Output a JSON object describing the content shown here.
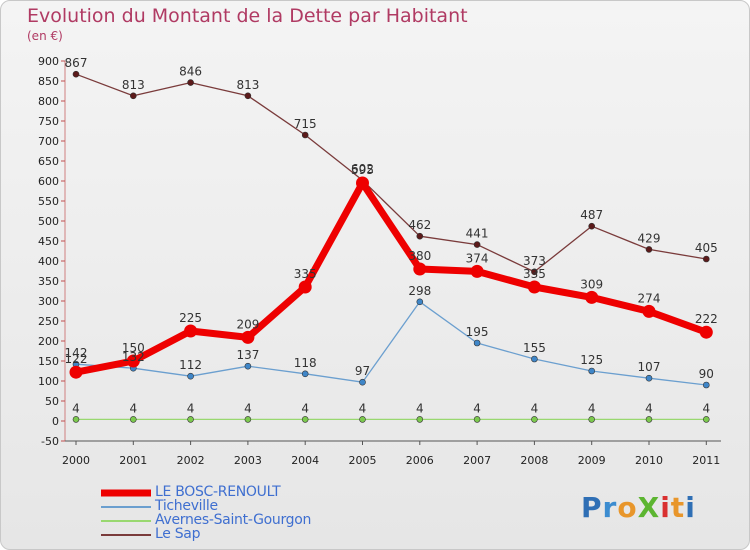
{
  "chart_data": {
    "type": "line",
    "title": "Evolution du Montant de la Dette par Habitant",
    "subtitle": "(en €)",
    "xlabel": "",
    "ylabel": "",
    "ylim": [
      -50,
      900
    ],
    "y_ticks": [
      900,
      850,
      800,
      750,
      700,
      650,
      600,
      550,
      500,
      450,
      400,
      350,
      300,
      250,
      200,
      150,
      100,
      50,
      0,
      -50
    ],
    "x": [
      "2000",
      "2001",
      "2002",
      "2003",
      "2004",
      "2005",
      "2006",
      "2007",
      "2008",
      "2009",
      "2010",
      "2011"
    ],
    "grid": false,
    "series": [
      {
        "name": "LE BOSC-RENOULT",
        "values": [
          122,
          150,
          225,
          209,
          335,
          595,
          380,
          374,
          335,
          309,
          274,
          222
        ],
        "color": "#ee0000",
        "marker": "#ee0000"
      },
      {
        "name": "Ticheville",
        "values": [
          142,
          132,
          112,
          137,
          118,
          97,
          298,
          195,
          155,
          125,
          107,
          90
        ],
        "color": "#6b9fcf",
        "marker": "#3f86c8"
      },
      {
        "name": "Avernes-Saint-Gourgon",
        "values": [
          4,
          4,
          4,
          4,
          4,
          4,
          4,
          4,
          4,
          4,
          4,
          4
        ],
        "color": "#99d870",
        "marker": "#7cc94e"
      },
      {
        "name": "Le Sap",
        "values": [
          867,
          813,
          846,
          813,
          715,
          602,
          462,
          441,
          373,
          487,
          429,
          405
        ],
        "color": "#7a3b3b",
        "marker": "#5c1a1a"
      }
    ],
    "labels": [
      {
        "series": 0,
        "text": [
          "122",
          "150",
          "225",
          "209",
          "335",
          "595",
          "380",
          "374",
          "335",
          "309",
          "274",
          "222"
        ]
      },
      {
        "series": 1,
        "text": [
          "142",
          "132",
          "112",
          "137",
          "118",
          "97",
          "298",
          "195",
          "155",
          "125",
          "107",
          "90"
        ]
      },
      {
        "series": 2,
        "text": [
          "4",
          "4",
          "4",
          "4",
          "4",
          "4",
          "4",
          "4",
          "4",
          "4",
          "4",
          "4"
        ]
      },
      {
        "series": 3,
        "text": [
          "867",
          "813",
          "846",
          "813",
          "715",
          "602",
          "462",
          "441",
          "373",
          "487",
          "429",
          "405"
        ]
      }
    ]
  },
  "logo": {
    "text": "ProXiti"
  }
}
